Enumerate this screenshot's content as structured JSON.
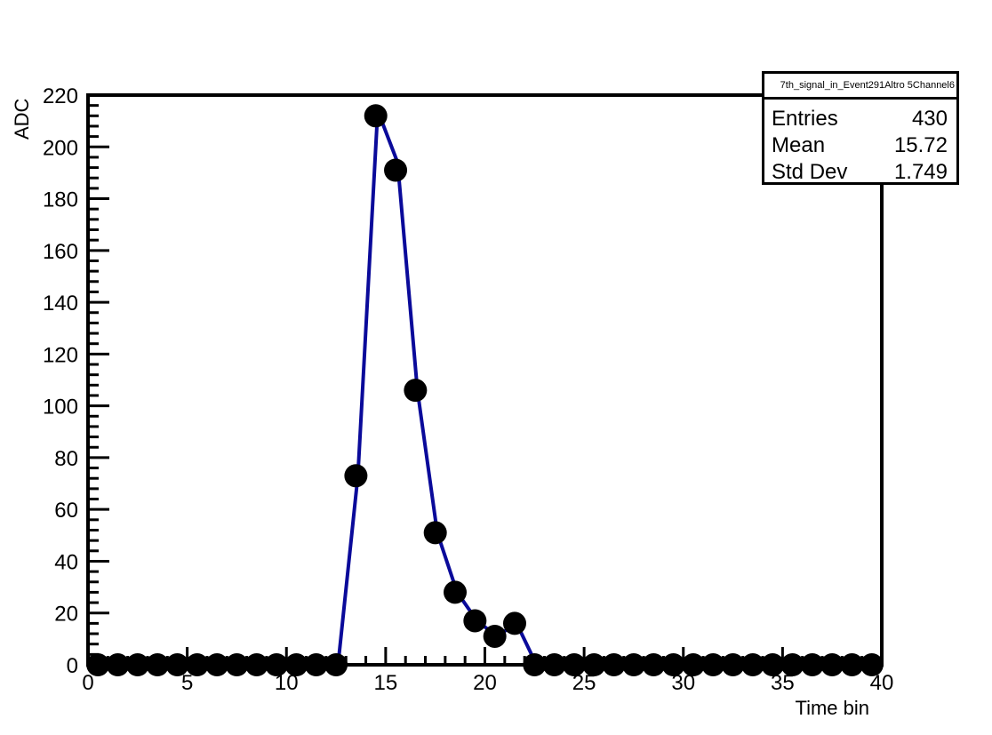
{
  "chart_data": {
    "type": "line",
    "title": "",
    "xlabel": "Time bin",
    "ylabel": "ADC",
    "xlim": [
      0,
      40
    ],
    "ylim": [
      0,
      220
    ],
    "xticks": [
      "0",
      "5",
      "10",
      "15",
      "20",
      "25",
      "30",
      "35",
      "40"
    ],
    "yticks": [
      "0",
      "20",
      "40",
      "60",
      "80",
      "100",
      "120",
      "140",
      "160",
      "180",
      "200",
      "220"
    ],
    "grid": false,
    "markers": {
      "x": [
        0.5,
        1.5,
        2.5,
        3.5,
        4.5,
        5.5,
        6.5,
        7.5,
        8.5,
        9.5,
        10.5,
        11.5,
        12.5,
        13.5,
        14.5,
        15.5,
        16.5,
        17.5,
        18.5,
        19.5,
        20.5,
        21.5,
        22.5,
        23.5,
        24.5,
        25.5,
        26.5,
        27.5,
        28.5,
        29.5,
        30.5,
        31.5,
        32.5,
        33.5,
        34.5,
        35.5,
        36.5,
        37.5,
        38.5,
        39.5
      ],
      "y": [
        0,
        0,
        0,
        0,
        0,
        0,
        0,
        0,
        0,
        0,
        0,
        0,
        0,
        73,
        212,
        191,
        106,
        51,
        28,
        17,
        11,
        16,
        0,
        0,
        0,
        0,
        0,
        0,
        0,
        0,
        0,
        0,
        0,
        0,
        0,
        0,
        0,
        0,
        0,
        0
      ],
      "color": "#000000"
    },
    "fit_line": {
      "x": [
        12.6,
        13.6,
        14.6,
        15.6,
        16.6,
        17.6,
        18.6,
        19.6,
        20.6,
        21.6,
        22.6
      ],
      "y": [
        0,
        73,
        214,
        194,
        106,
        51,
        28,
        17,
        11,
        16,
        0
      ],
      "color": "#0a0a9a"
    }
  },
  "stats": {
    "title": "7th_signal_in_Event291Altro 5Channel6",
    "rows": [
      {
        "key": "Entries",
        "value": "430"
      },
      {
        "key": "Mean",
        "value": "15.72"
      },
      {
        "key": "Std Dev",
        "value": "1.749"
      }
    ]
  }
}
